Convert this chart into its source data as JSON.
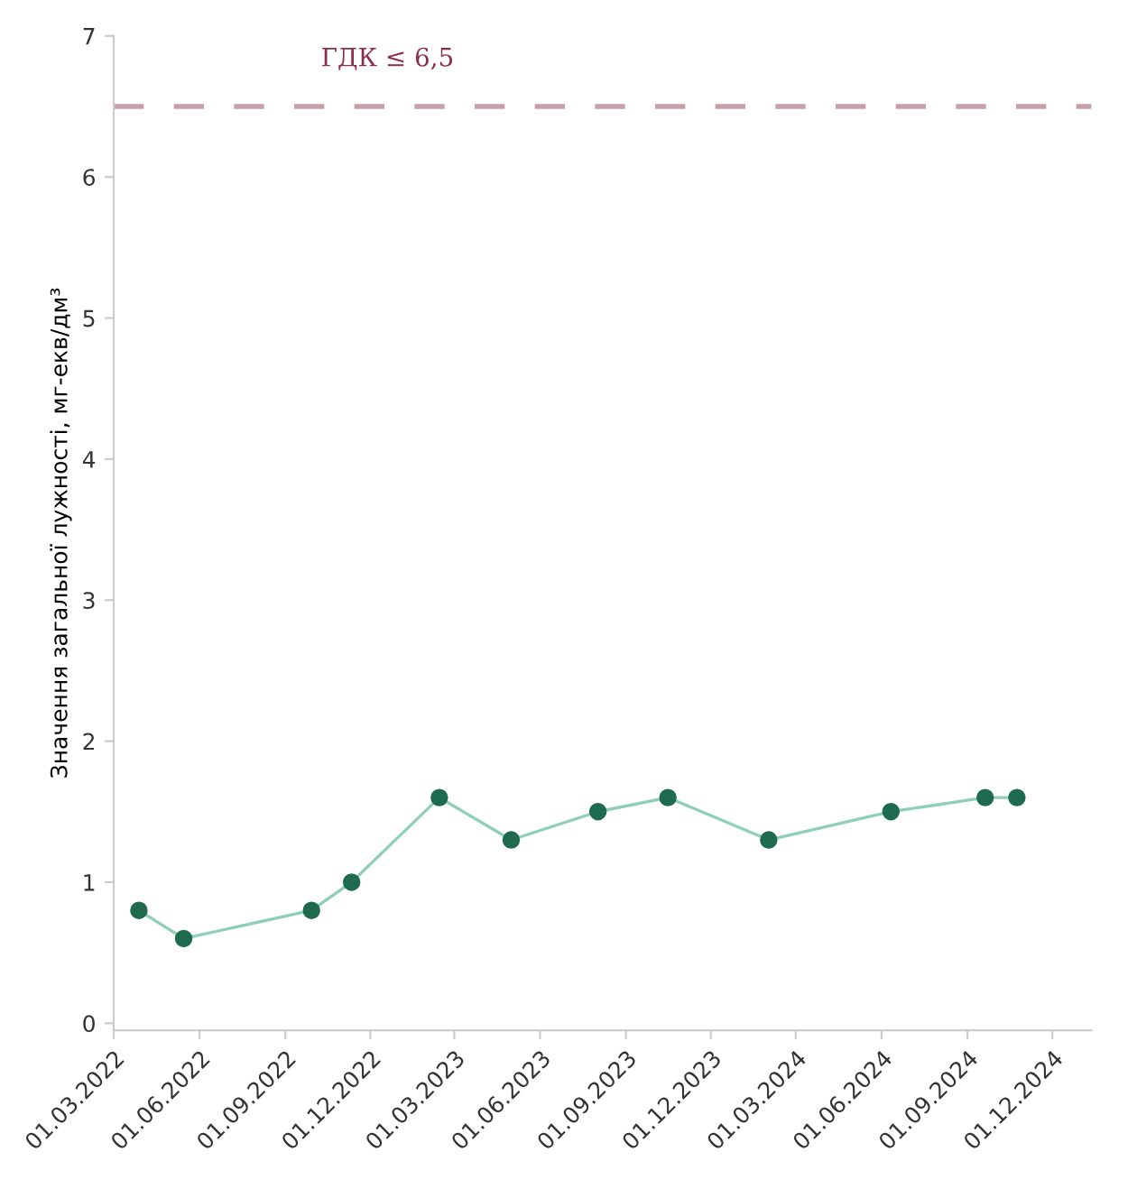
{
  "chart_data": {
    "type": "line",
    "ylabel": "Значення загальної лужності, мг-екв/дм³",
    "x": [
      "2022-03-28",
      "2022-05-15",
      "2022-09-29",
      "2022-11-11",
      "2023-02-13",
      "2023-05-01",
      "2023-08-02",
      "2023-10-16",
      "2024-02-01",
      "2024-06-11",
      "2024-09-20",
      "2024-10-24"
    ],
    "series": [
      {
        "color": "#1f6b50",
        "values": [
          0.8,
          0.6,
          0.8,
          1.0,
          1.6,
          1.3,
          1.5,
          1.6,
          1.3,
          1.5,
          1.6,
          1.6
        ]
      }
    ],
    "marker": "circle",
    "line_style": "solid",
    "grid": false,
    "legend": false,
    "xlim": [
      "2022-03-01",
      "2025-01-12"
    ],
    "xticks": [
      {
        "value": "2022-03-01",
        "label": "01.03.2022"
      },
      {
        "value": "2022-06-01",
        "label": "01.06.2022"
      },
      {
        "value": "2022-09-01",
        "label": "01.09.2022"
      },
      {
        "value": "2022-12-01",
        "label": "01.12.2022"
      },
      {
        "value": "2023-03-01",
        "label": "01.03.2023"
      },
      {
        "value": "2023-06-01",
        "label": "01.06.2023"
      },
      {
        "value": "2023-09-01",
        "label": "01.09.2023"
      },
      {
        "value": "2023-12-01",
        "label": "01.12.2023"
      },
      {
        "value": "2024-03-01",
        "label": "01.03.2024"
      },
      {
        "value": "2024-06-01",
        "label": "01.06.2024"
      },
      {
        "value": "2024-09-01",
        "label": "01.09.2024"
      },
      {
        "value": "2024-12-01",
        "label": "01.12.2024"
      }
    ],
    "ylim": [
      -0.05,
      7
    ],
    "yticks": [
      0,
      1,
      2,
      3,
      4,
      5,
      6,
      7
    ],
    "ref_lines": [
      {
        "axis": "y",
        "value": 6.5,
        "label": "ГДК ≤ 6,5",
        "color": "#c9a0a8",
        "line_style": "dashed"
      }
    ]
  }
}
